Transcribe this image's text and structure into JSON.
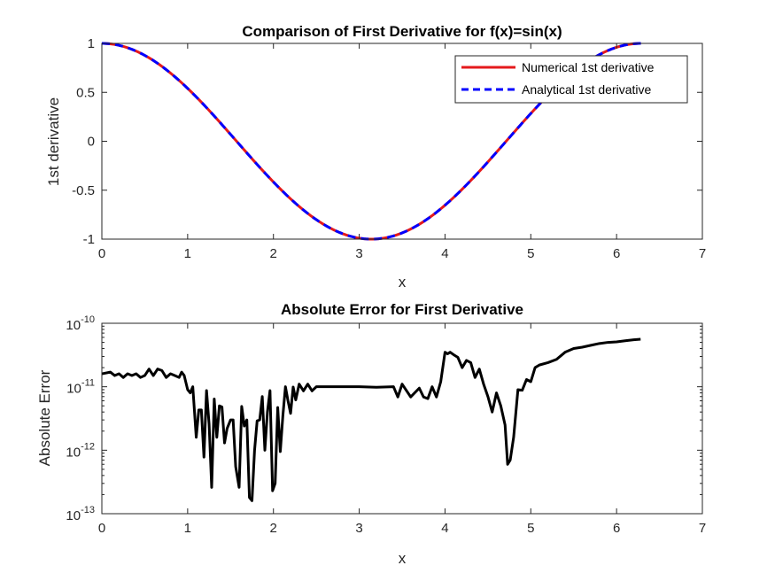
{
  "colors": {
    "numerical": "#e41a1c",
    "analytical": "#0000ff",
    "error": "#000000",
    "axes": "#262626"
  },
  "chart_data": [
    {
      "type": "line",
      "title": "Comparison of First Derivative for f(x)=sin(x)",
      "xlabel": "x",
      "ylabel": "1st derivative",
      "xlim": [
        0,
        7
      ],
      "ylim": [
        -1,
        1
      ],
      "xticks": [
        "0",
        "1",
        "2",
        "3",
        "4",
        "5",
        "6",
        "7"
      ],
      "yticks": [
        "-1",
        "-0.5",
        "0",
        "0.5",
        "1"
      ],
      "legend_position": "top-right",
      "series": [
        {
          "name": "Numerical 1st derivative",
          "style": "solid",
          "color": "#e41a1c",
          "function": "cos(x)",
          "x_range": [
            0,
            6.2832
          ]
        },
        {
          "name": "Analytical 1st derivative",
          "style": "dashed",
          "color": "#0000ff",
          "function": "cos(x)",
          "x_range": [
            0,
            6.2832
          ]
        }
      ]
    },
    {
      "type": "line",
      "title": "Absolute Error for First Derivative",
      "xlabel": "x",
      "ylabel": "Absolute Error",
      "xlim": [
        0,
        7
      ],
      "ylim": [
        1e-13,
        1e-10
      ],
      "yscale": "log",
      "xticks": [
        "0",
        "1",
        "2",
        "3",
        "4",
        "5",
        "6",
        "7"
      ],
      "yticks": [
        {
          "base": "10",
          "exp": "-13",
          "value": 1e-13
        },
        {
          "base": "10",
          "exp": "-12",
          "value": 1e-12
        },
        {
          "base": "10",
          "exp": "-11",
          "value": 1e-11
        },
        {
          "base": "10",
          "exp": "-10",
          "value": 1e-10
        }
      ],
      "series": [
        {
          "color": "#000000",
          "x": [
            0.0,
            0.1,
            0.15,
            0.2,
            0.25,
            0.3,
            0.35,
            0.4,
            0.45,
            0.5,
            0.55,
            0.6,
            0.65,
            0.7,
            0.75,
            0.8,
            0.85,
            0.9,
            0.93,
            0.96,
            1.0,
            1.03,
            1.06,
            1.08,
            1.1,
            1.13,
            1.16,
            1.19,
            1.22,
            1.25,
            1.28,
            1.31,
            1.34,
            1.37,
            1.4,
            1.43,
            1.46,
            1.5,
            1.53,
            1.56,
            1.6,
            1.63,
            1.66,
            1.69,
            1.72,
            1.75,
            1.78,
            1.81,
            1.84,
            1.87,
            1.9,
            1.93,
            1.96,
            1.99,
            2.02,
            2.05,
            2.08,
            2.11,
            2.14,
            2.17,
            2.2,
            2.23,
            2.26,
            2.3,
            2.35,
            2.4,
            2.45,
            2.5,
            2.6,
            2.8,
            3.0,
            3.2,
            3.4,
            3.45,
            3.5,
            3.6,
            3.7,
            3.75,
            3.8,
            3.85,
            3.9,
            3.95,
            4.0,
            4.03,
            4.06,
            4.1,
            4.15,
            4.2,
            4.25,
            4.3,
            4.35,
            4.4,
            4.45,
            4.5,
            4.55,
            4.6,
            4.65,
            4.7,
            4.73,
            4.76,
            4.8,
            4.85,
            4.9,
            4.95,
            5.0,
            5.05,
            5.1,
            5.2,
            5.3,
            5.4,
            5.5,
            5.6,
            5.7,
            5.8,
            5.9,
            6.0,
            6.1,
            6.2,
            6.28
          ],
          "y": [
            1.6e-11,
            1.7e-11,
            1.5e-11,
            1.6e-11,
            1.4e-11,
            1.6e-11,
            1.5e-11,
            1.6e-11,
            1.4e-11,
            1.5e-11,
            1.9e-11,
            1.5e-11,
            1.9e-11,
            1.8e-11,
            1.4e-11,
            1.6e-11,
            1.5e-11,
            1.4e-11,
            1.7e-11,
            1.5e-11,
            9e-12,
            8e-12,
            1e-11,
            4e-12,
            1.6e-12,
            4.3e-12,
            4.3e-12,
            7.8e-13,
            8.7e-12,
            2.6e-12,
            2.6e-13,
            6.4e-12,
            1.6e-12,
            5e-12,
            4.8e-12,
            1.3e-12,
            2.2e-12,
            3e-12,
            3e-12,
            5.5e-13,
            2.6e-13,
            4.9e-12,
            2.4e-12,
            3e-12,
            1.8e-13,
            1.6e-13,
            1e-12,
            2.9e-12,
            3e-12,
            7e-12,
            1e-12,
            4e-12,
            8.7e-12,
            2.3e-13,
            3e-13,
            4.7e-12,
            9.5e-13,
            3.5e-12,
            1e-11,
            6e-12,
            3.8e-12,
            9.9e-12,
            6.2e-12,
            1.1e-11,
            8.6e-12,
            1.1e-11,
            8.6e-12,
            1e-11,
            1e-11,
            1e-11,
            1e-11,
            9.8e-12,
            1e-11,
            6.9e-12,
            1.1e-11,
            6.9e-12,
            9.5e-12,
            6.9e-12,
            6.5e-12,
            1e-11,
            6.9e-12,
            1.2e-11,
            3.5e-11,
            3.3e-11,
            3.5e-11,
            3.2e-11,
            2.9e-11,
            2e-11,
            2.6e-11,
            2.4e-11,
            1.4e-11,
            1.9e-11,
            1.1e-11,
            7e-12,
            4e-12,
            8e-12,
            5e-12,
            2.5e-12,
            6e-13,
            7e-13,
            1.6e-12,
            9e-12,
            8.8e-12,
            1.3e-11,
            1.2e-11,
            2e-11,
            2.2e-11,
            2.4e-11,
            2.7e-11,
            3.5e-11,
            4e-11,
            4.2e-11,
            4.5e-11,
            4.8e-11,
            5e-11,
            5.1e-11,
            5.3e-11,
            5.5e-11,
            5.6e-11
          ]
        }
      ]
    }
  ]
}
